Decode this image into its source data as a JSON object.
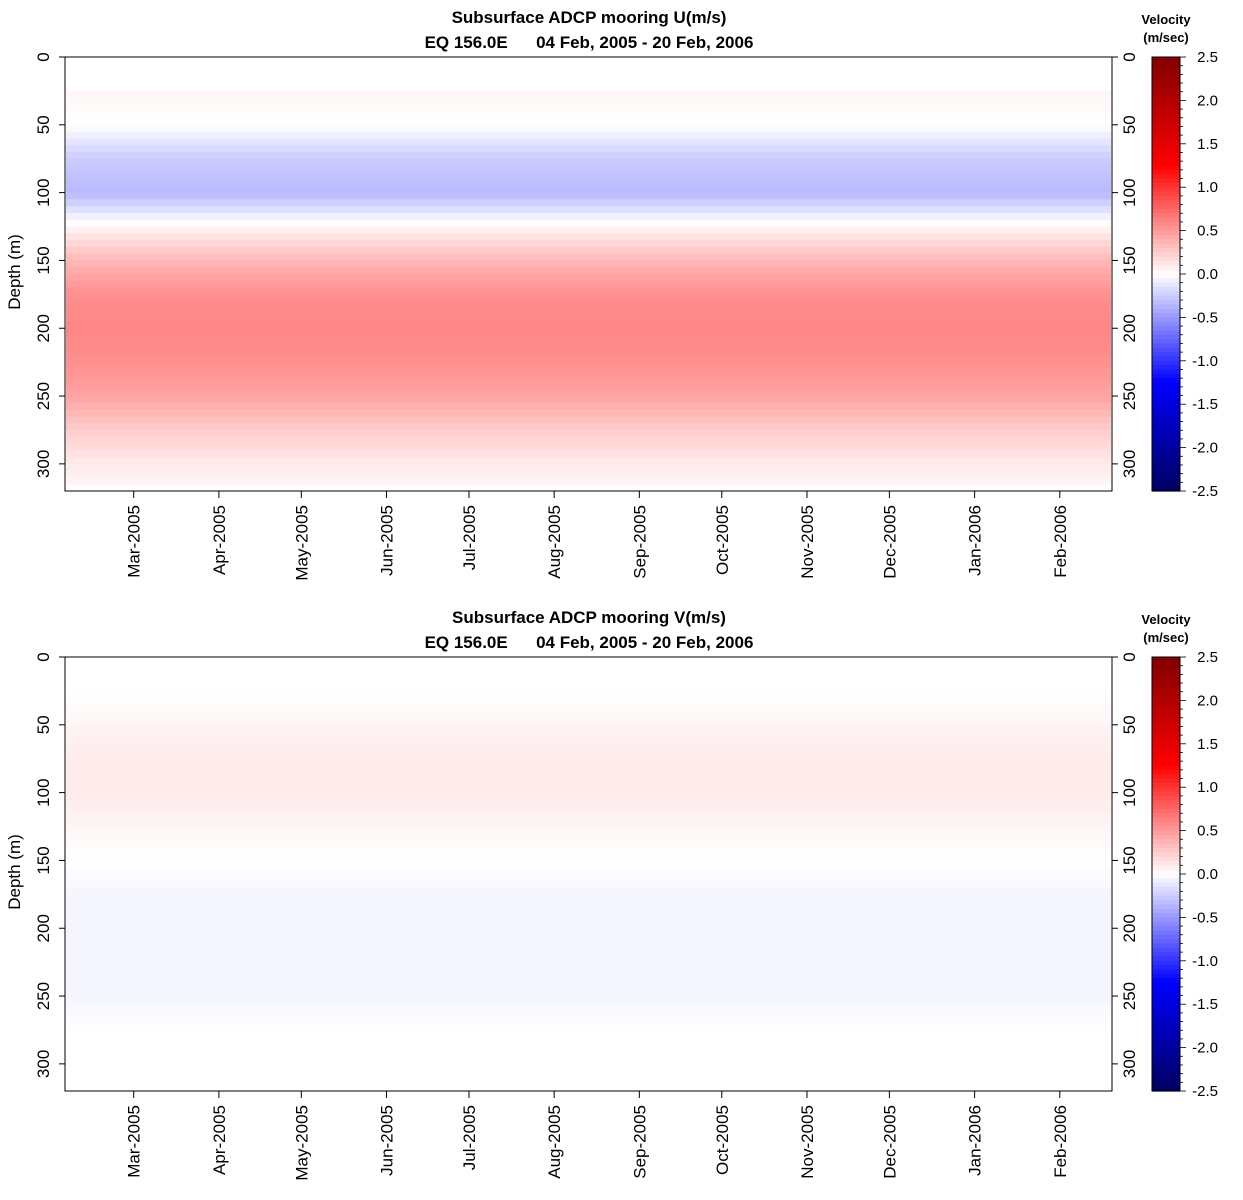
{
  "chart_data": [
    {
      "type": "heatmap",
      "title": "Subsurface ADCP mooring U(m/s)",
      "subtitle": "EQ 156.0E      04 Feb, 2005 - 20 Feb, 2006",
      "ylabel": "Depth (m)",
      "xlabel": "",
      "x_ticks": [
        "Mar-2005",
        "Apr-2005",
        "May-2005",
        "Jun-2005",
        "Jul-2005",
        "Aug-2005",
        "Sep-2005",
        "Oct-2005",
        "Nov-2005",
        "Dec-2005",
        "Jan-2006",
        "Feb-2006"
      ],
      "x_range": [
        "2005-02-04",
        "2006-02-20"
      ],
      "y_ticks": [
        0,
        50,
        100,
        150,
        200,
        250,
        300
      ],
      "ylim": [
        320,
        0
      ],
      "depth_coverage": [
        25,
        315
      ],
      "colorbar": {
        "title_line1": "Velocity",
        "title_line2": "(m/sec)",
        "range": [
          -2.5,
          2.5
        ],
        "tick_labels": [
          "2.5",
          "2.0",
          "1.5",
          "1.0",
          "0.5",
          "0.0",
          "-0.5",
          "-1.0",
          "-1.5",
          "-2.0",
          "-2.5"
        ],
        "colors": [
          "#000060",
          "#0000ff",
          "#ffffff",
          "#ff0000",
          "#800000"
        ]
      },
      "mean_profile": {
        "depths": [
          25,
          50,
          75,
          100,
          125,
          150,
          175,
          200,
          225,
          250,
          275,
          300,
          315
        ],
        "values": [
          0.05,
          0.0,
          -0.25,
          -0.35,
          0.05,
          0.35,
          0.55,
          0.6,
          0.55,
          0.45,
          0.25,
          0.1,
          0.05
        ]
      }
    },
    {
      "type": "heatmap",
      "title": "Subsurface ADCP mooring V(m/s)",
      "subtitle": "EQ 156.0E      04 Feb, 2005 - 20 Feb, 2006",
      "ylabel": "Depth (m)",
      "xlabel": "",
      "x_ticks": [
        "Mar-2005",
        "Apr-2005",
        "May-2005",
        "Jun-2005",
        "Jul-2005",
        "Aug-2005",
        "Sep-2005",
        "Oct-2005",
        "Nov-2005",
        "Dec-2005",
        "Jan-2006",
        "Feb-2006"
      ],
      "x_range": [
        "2005-02-04",
        "2006-02-20"
      ],
      "y_ticks": [
        0,
        50,
        100,
        150,
        200,
        250,
        300
      ],
      "ylim": [
        320,
        0
      ],
      "depth_coverage": [
        25,
        315
      ],
      "colorbar": {
        "title_line1": "Velocity",
        "title_line2": "(m/sec)",
        "range": [
          -2.5,
          2.5
        ],
        "tick_labels": [
          "2.5",
          "2.0",
          "1.5",
          "1.0",
          "0.5",
          "0.0",
          "-0.5",
          "-1.0",
          "-1.5",
          "-2.0",
          "-2.5"
        ],
        "colors": [
          "#000060",
          "#0000ff",
          "#ffffff",
          "#ff0000",
          "#800000"
        ]
      },
      "mean_profile": {
        "depths": [
          25,
          50,
          75,
          100,
          125,
          150,
          175,
          200,
          225,
          250,
          275,
          300,
          315
        ],
        "values": [
          0.0,
          0.05,
          0.1,
          0.1,
          0.05,
          0.0,
          -0.05,
          -0.05,
          -0.05,
          -0.05,
          0.0,
          0.0,
          0.0
        ]
      }
    }
  ]
}
